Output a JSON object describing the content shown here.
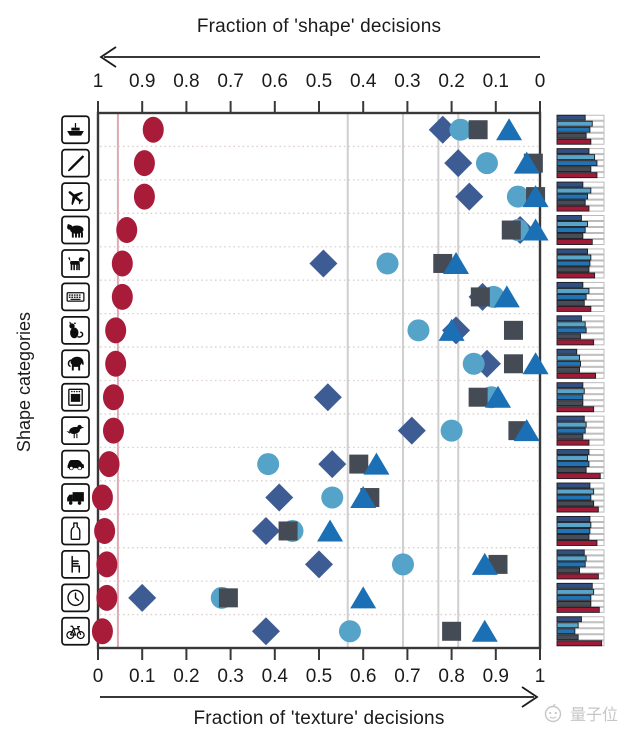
{
  "titles": {
    "top_axis": "Fraction of 'shape' decisions",
    "bottom_axis": "Fraction of 'texture' decisions",
    "y_axis": "Shape categories"
  },
  "watermark": {
    "logo": "qbitai-logo",
    "text": "量子位"
  },
  "colors": {
    "human_red": "#a81c3a",
    "diamond_navy": "#3e5c94",
    "circle_cyan": "#55a3c8",
    "square_gray": "#454b55",
    "triangle_blue": "#1b6fb5",
    "axis": "#383838",
    "avg_line_gray": "#cfcfcf",
    "avg_line_red": "#dfa9b4",
    "row_dotted": "#decfcf",
    "minibar_bg_stroke": "#b4b4b4",
    "minibar_bar_stroke": "#1c1c22",
    "watermark_gray": "#c6c6c6"
  },
  "chart_data": {
    "type": "scatter",
    "orientation": "horizontal-categories",
    "top_axis": {
      "label": "Fraction of 'shape' decisions",
      "direction": "left-arrow",
      "ticks": [
        "1",
        "0.9",
        "0.8",
        "0.7",
        "0.6",
        "0.5",
        "0.4",
        "0.3",
        "0.2",
        "0.1",
        "0"
      ]
    },
    "bottom_axis": {
      "label": "Fraction of 'texture' decisions",
      "direction": "right-arrow",
      "ticks": [
        "0",
        "0.1",
        "0.2",
        "0.3",
        "0.4",
        "0.5",
        "0.6",
        "0.7",
        "0.8",
        "0.9",
        "1"
      ]
    },
    "xlim": [
      0,
      1
    ],
    "grid": "dotted-row-separators",
    "categories": [
      "boat",
      "knife",
      "airplane",
      "bear",
      "dog",
      "keyboard",
      "cat",
      "elephant",
      "oven",
      "bird",
      "car",
      "truck",
      "bottle",
      "chair",
      "clock",
      "bicycle"
    ],
    "series": [
      {
        "name": "red-ellipses",
        "marker": "ellipse",
        "color": "#a81c3a",
        "texture_fraction": [
          0.125,
          0.105,
          0.105,
          0.065,
          0.055,
          0.055,
          0.04,
          0.04,
          0.035,
          0.035,
          0.025,
          0.01,
          0.015,
          0.02,
          0.02,
          0.01
        ]
      },
      {
        "name": "navy-diamonds",
        "marker": "diamond",
        "color": "#3e5c94",
        "texture_fraction": [
          0.78,
          0.815,
          0.84,
          0.955,
          0.51,
          0.87,
          0.81,
          0.88,
          0.52,
          0.71,
          0.53,
          0.41,
          0.38,
          0.5,
          0.1,
          0.38
        ]
      },
      {
        "name": "cyan-circles",
        "marker": "circle",
        "color": "#55a3c8",
        "texture_fraction": [
          0.82,
          0.88,
          0.95,
          0.95,
          0.655,
          0.895,
          0.725,
          0.85,
          0.89,
          0.8,
          0.385,
          0.53,
          0.44,
          0.69,
          0.28,
          0.57
        ]
      },
      {
        "name": "gray-squares",
        "marker": "square",
        "color": "#454b55",
        "texture_fraction": [
          0.86,
          0.985,
          0.99,
          0.935,
          0.78,
          0.865,
          0.94,
          0.94,
          0.86,
          0.95,
          0.59,
          0.615,
          0.43,
          0.905,
          0.295,
          0.8
        ]
      },
      {
        "name": "blue-triangles",
        "marker": "triangle",
        "color": "#1b6fb5",
        "texture_fraction": [
          0.93,
          0.97,
          0.99,
          0.99,
          0.81,
          0.925,
          0.8,
          0.99,
          0.905,
          0.97,
          0.63,
          0.6,
          0.525,
          0.875,
          0.6,
          0.875
        ]
      }
    ],
    "average_lines": [
      {
        "series": "red-ellipses",
        "texture_fraction": 0.045,
        "color": "#dfa9b4"
      },
      {
        "series": "navy-diamonds",
        "texture_fraction": 0.565,
        "color": "#cfcfcf"
      },
      {
        "series": "cyan-circles",
        "texture_fraction": 0.69,
        "color": "#cfcfcf"
      },
      {
        "series": "gray-squares",
        "texture_fraction": 0.77,
        "color": "#cfcfcf"
      },
      {
        "series": "blue-triangles",
        "texture_fraction": 0.815,
        "color": "#cfcfcf"
      }
    ],
    "mini_bars": {
      "description": "small horizontal bar chart to the right of each category row, 5 bars top-to-bottom",
      "bar_order": [
        "navy",
        "cyan",
        "blue",
        "gray",
        "red"
      ],
      "bar_colors": [
        "#32507f",
        "#58a5c9",
        "#2273b4",
        "#474d57",
        "#a01b38"
      ],
      "values": [
        [
          0.6,
          0.75,
          0.7,
          0.62,
          0.72
        ],
        [
          0.68,
          0.8,
          0.85,
          0.72,
          0.85
        ],
        [
          0.55,
          0.72,
          0.65,
          0.6,
          0.68
        ],
        [
          0.52,
          0.65,
          0.6,
          0.55,
          0.75
        ],
        [
          0.65,
          0.72,
          0.7,
          0.68,
          0.8
        ],
        [
          0.55,
          0.68,
          0.62,
          0.58,
          0.72
        ],
        [
          0.52,
          0.6,
          0.62,
          0.5,
          0.78
        ],
        [
          0.42,
          0.48,
          0.5,
          0.48,
          0.82
        ],
        [
          0.55,
          0.58,
          0.55,
          0.55,
          0.78
        ],
        [
          0.58,
          0.62,
          0.6,
          0.55,
          0.68
        ],
        [
          0.68,
          0.65,
          0.68,
          0.62,
          0.92
        ],
        [
          0.7,
          0.78,
          0.72,
          0.78,
          0.88
        ],
        [
          0.7,
          0.72,
          0.7,
          0.68,
          0.85
        ],
        [
          0.58,
          0.62,
          0.6,
          0.48,
          0.88
        ],
        [
          0.75,
          0.78,
          0.72,
          0.72,
          0.9
        ],
        [
          0.52,
          0.45,
          0.38,
          0.45,
          0.95
        ]
      ]
    }
  }
}
